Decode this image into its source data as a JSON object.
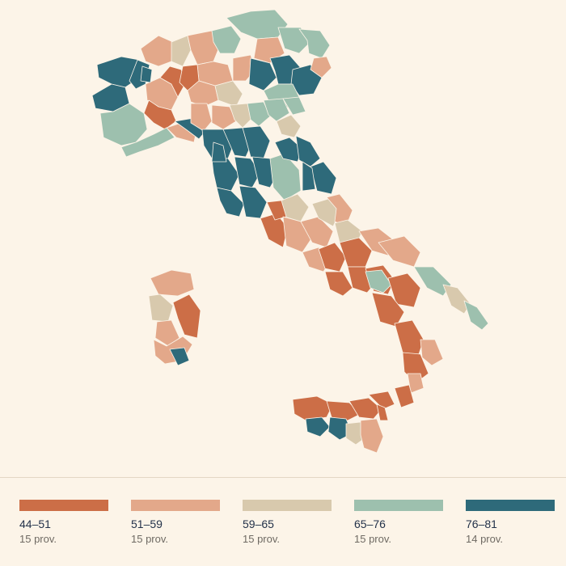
{
  "colors": {
    "background": "#fcf4e8",
    "border": "#fcf4e8",
    "class_1": "#cc6e47",
    "class_2": "#e3a88a",
    "class_3": "#d8c9ad",
    "class_4": "#9dc0ae",
    "class_5": "#2e6a7a"
  },
  "legend": {
    "items": [
      {
        "range": "44–51",
        "count": "15 prov.",
        "color": "#cc6e47"
      },
      {
        "range": "51–59",
        "count": "15 prov.",
        "color": "#e3a88a"
      },
      {
        "range": "59–65",
        "count": "15 prov.",
        "color": "#d8c9ad"
      },
      {
        "range": "65–76",
        "count": "15 prov.",
        "color": "#9dc0ae"
      },
      {
        "range": "76–81",
        "count": "14 prov.",
        "color": "#2e6a7a"
      }
    ]
  }
}
